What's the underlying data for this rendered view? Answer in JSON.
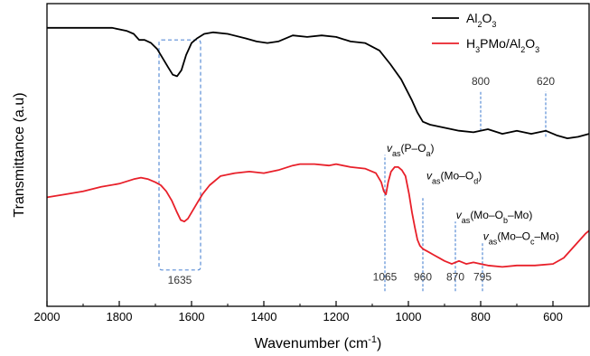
{
  "chart_data": {
    "type": "line",
    "xlabel": "Wavenumber (cm",
    "xlabel_sup": "-1",
    "xlabel_end": ")",
    "ylabel": "Transmittance (a.u)",
    "xlim": [
      2000,
      500
    ],
    "ylim": [
      0,
      100
    ],
    "y_ticks_shown": false,
    "grid": false,
    "x_reversed": true,
    "x_ticks": [
      2000,
      1800,
      1600,
      1400,
      1200,
      1000,
      800,
      600
    ],
    "x_tick_labels": [
      "2000",
      "1800",
      "1600",
      "1400",
      "1200",
      "1000",
      "800",
      "600"
    ],
    "legend": {
      "placement": "top-right",
      "entries": [
        {
          "series": 0,
          "parts": [
            {
              "t": "Al"
            },
            {
              "t": "2",
              "sub": true
            },
            {
              "t": "O"
            },
            {
              "t": "3",
              "sub": true
            }
          ]
        },
        {
          "series": 1,
          "parts": [
            {
              "t": "H"
            },
            {
              "t": "3",
              "sub": true
            },
            {
              "t": "PMo/Al"
            },
            {
              "t": "2",
              "sub": true
            },
            {
              "t": "O"
            },
            {
              "t": "3",
              "sub": true
            }
          ]
        }
      ]
    },
    "series": [
      {
        "name": "Al2O3",
        "color": "#000000",
        "points": [
          [
            2000,
            92
          ],
          [
            1900,
            92
          ],
          [
            1820,
            92
          ],
          [
            1780,
            91
          ],
          [
            1760,
            90
          ],
          [
            1745,
            88
          ],
          [
            1730,
            88
          ],
          [
            1712,
            87
          ],
          [
            1695,
            85
          ],
          [
            1680,
            82
          ],
          [
            1665,
            79
          ],
          [
            1652,
            76.5
          ],
          [
            1640,
            76
          ],
          [
            1628,
            78
          ],
          [
            1615,
            83
          ],
          [
            1600,
            87
          ],
          [
            1585,
            88.5
          ],
          [
            1565,
            90
          ],
          [
            1540,
            90.5
          ],
          [
            1500,
            90
          ],
          [
            1450,
            88.5
          ],
          [
            1420,
            87.5
          ],
          [
            1390,
            87
          ],
          [
            1360,
            87.5
          ],
          [
            1320,
            89.5
          ],
          [
            1280,
            89
          ],
          [
            1240,
            89.5
          ],
          [
            1200,
            89
          ],
          [
            1160,
            87.5
          ],
          [
            1120,
            87
          ],
          [
            1080,
            84.5
          ],
          [
            1050,
            80
          ],
          [
            1020,
            75
          ],
          [
            990,
            68
          ],
          [
            975,
            64
          ],
          [
            960,
            61
          ],
          [
            940,
            60
          ],
          [
            900,
            59
          ],
          [
            860,
            58
          ],
          [
            820,
            57.5
          ],
          [
            780,
            58.5
          ],
          [
            740,
            57
          ],
          [
            700,
            58
          ],
          [
            660,
            57
          ],
          [
            620,
            58
          ],
          [
            590,
            56.5
          ],
          [
            560,
            55.5
          ],
          [
            530,
            56
          ],
          [
            500,
            57
          ]
        ]
      },
      {
        "name": "H3PMo/Al2O3",
        "color": "#e8202a",
        "points": [
          [
            2000,
            36
          ],
          [
            1950,
            37
          ],
          [
            1900,
            38
          ],
          [
            1850,
            39.5
          ],
          [
            1800,
            40.5
          ],
          [
            1760,
            42
          ],
          [
            1740,
            42.5
          ],
          [
            1720,
            42
          ],
          [
            1700,
            41
          ],
          [
            1685,
            40
          ],
          [
            1670,
            38
          ],
          [
            1655,
            35
          ],
          [
            1640,
            31
          ],
          [
            1630,
            28.5
          ],
          [
            1620,
            28
          ],
          [
            1610,
            29
          ],
          [
            1600,
            31
          ],
          [
            1585,
            34
          ],
          [
            1570,
            37
          ],
          [
            1550,
            40
          ],
          [
            1520,
            43
          ],
          [
            1480,
            44
          ],
          [
            1440,
            44.5
          ],
          [
            1400,
            44
          ],
          [
            1360,
            45
          ],
          [
            1320,
            46.5
          ],
          [
            1300,
            47
          ],
          [
            1260,
            47
          ],
          [
            1220,
            46.5
          ],
          [
            1200,
            47
          ],
          [
            1160,
            46
          ],
          [
            1120,
            45.5
          ],
          [
            1090,
            44
          ],
          [
            1075,
            41
          ],
          [
            1068,
            38
          ],
          [
            1062,
            37
          ],
          [
            1056,
            41
          ],
          [
            1048,
            44.5
          ],
          [
            1038,
            46
          ],
          [
            1028,
            46
          ],
          [
            1018,
            45
          ],
          [
            1008,
            43
          ],
          [
            998,
            37
          ],
          [
            990,
            31
          ],
          [
            982,
            26
          ],
          [
            975,
            22
          ],
          [
            968,
            20
          ],
          [
            960,
            19
          ],
          [
            945,
            18
          ],
          [
            930,
            17
          ],
          [
            915,
            16
          ],
          [
            900,
            15
          ],
          [
            880,
            14
          ],
          [
            860,
            15
          ],
          [
            840,
            14
          ],
          [
            820,
            14.5
          ],
          [
            800,
            14
          ],
          [
            780,
            13.5
          ],
          [
            740,
            13
          ],
          [
            700,
            13.5
          ],
          [
            650,
            13.5
          ],
          [
            600,
            14
          ],
          [
            570,
            16
          ],
          [
            540,
            20
          ],
          [
            510,
            24
          ],
          [
            500,
            25
          ]
        ]
      }
    ],
    "annotations": [
      {
        "type": "box",
        "x": [
          1690,
          1575
        ],
        "y": [
          12,
          88
        ],
        "color": "#5b8ed6",
        "label": "1635"
      },
      {
        "type": "vline",
        "x": 1065,
        "y": [
          5,
          50
        ],
        "label": "1065"
      },
      {
        "type": "vline",
        "x": 960,
        "y": [
          5,
          36
        ],
        "label": "960"
      },
      {
        "type": "vline",
        "x": 870,
        "y": [
          5,
          28
        ],
        "label": "870"
      },
      {
        "type": "vline",
        "x": 795,
        "y": [
          5,
          21
        ],
        "label": "795"
      },
      {
        "type": "vline",
        "x": 800,
        "y": [
          58,
          71
        ],
        "label": "800"
      },
      {
        "type": "vline",
        "x": 620,
        "y": [
          56,
          71
        ],
        "label": "620"
      },
      {
        "type": "text",
        "x": 1060,
        "y": 51,
        "parts": [
          {
            "t": "v",
            "italic": true
          },
          {
            "t": "as",
            "sub": true
          },
          {
            "t": "(P–O"
          },
          {
            "t": "a",
            "sub": true
          },
          {
            "t": ")"
          }
        ]
      },
      {
        "type": "text",
        "x": 950,
        "y": 42,
        "parts": [
          {
            "t": "v",
            "italic": true
          },
          {
            "t": "as",
            "sub": true
          },
          {
            "t": "(Mo–O"
          },
          {
            "t": "d",
            "sub": true
          },
          {
            "t": ")"
          }
        ]
      },
      {
        "type": "text",
        "x": 868,
        "y": 29,
        "parts": [
          {
            "t": "v",
            "italic": true
          },
          {
            "t": "as",
            "sub": true
          },
          {
            "t": "(Mo–O"
          },
          {
            "t": "b",
            "sub": true
          },
          {
            "t": "–Mo)"
          }
        ]
      },
      {
        "type": "text",
        "x": 793,
        "y": 22,
        "parts": [
          {
            "t": "v",
            "italic": true
          },
          {
            "t": "as",
            "sub": true
          },
          {
            "t": "(Mo–O"
          },
          {
            "t": "c",
            "sub": true
          },
          {
            "t": "–Mo)"
          }
        ]
      }
    ]
  }
}
